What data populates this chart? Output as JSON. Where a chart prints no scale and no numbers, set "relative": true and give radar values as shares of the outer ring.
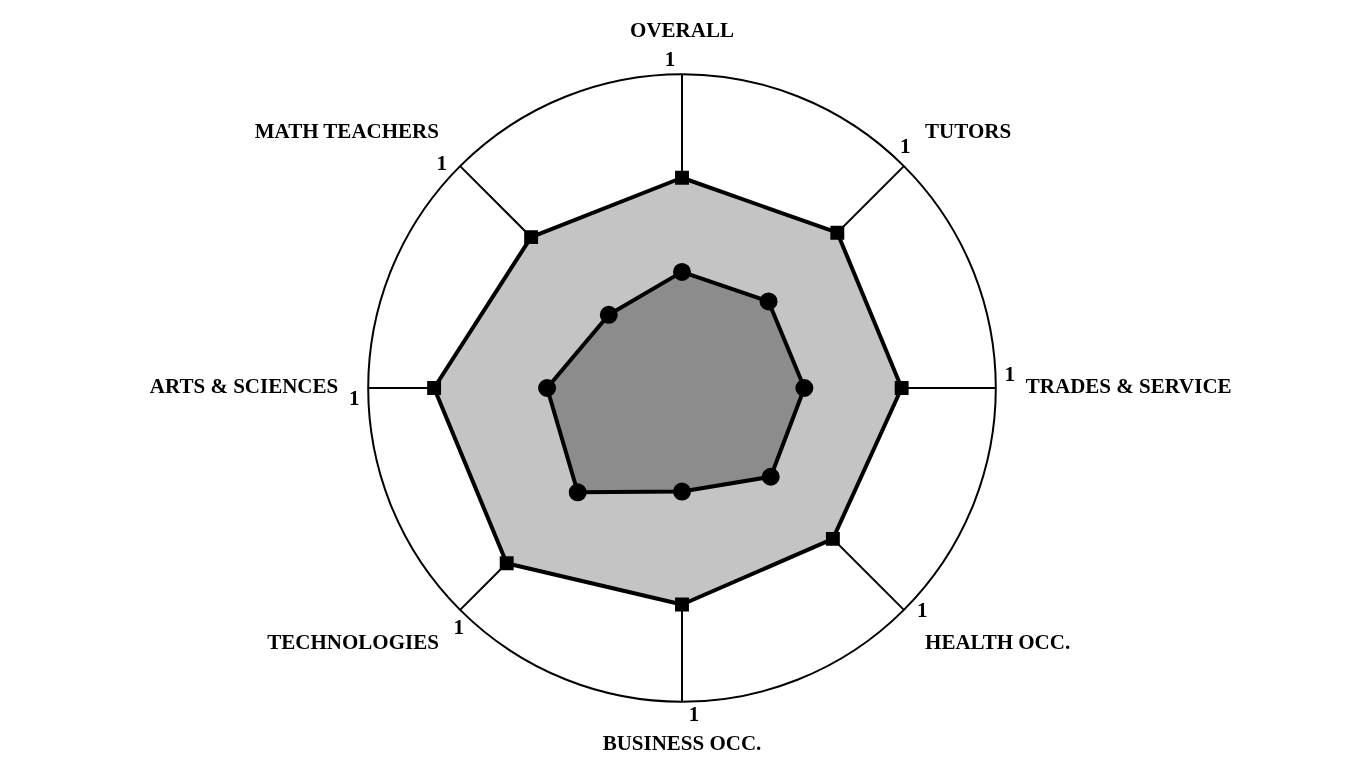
{
  "chart_data": {
    "type": "radar",
    "relative": true,
    "categories": [
      "OVERALL",
      "TUTORS",
      "TRADES & SERVICE",
      "HEALTH OCC.",
      "BUSINESS OCC.",
      "TECHNOLOGIES",
      "ARTS & SCIENCES",
      "MATH TEACHERS"
    ],
    "grid": true,
    "line_style": "solid",
    "annotations": [
      "1",
      "1",
      "1",
      "1",
      "1",
      "1",
      "1",
      "1"
    ],
    "series": [
      {
        "color": "#c4c4c4",
        "marker": "square",
        "values": [
          0.67,
          0.7,
          0.7,
          0.68,
          0.69,
          0.79,
          0.79,
          0.68
        ]
      },
      {
        "color": "#8c8c8c",
        "marker": "circle",
        "values": [
          0.37,
          0.39,
          0.39,
          0.4,
          0.33,
          0.47,
          0.43,
          0.33
        ]
      }
    ]
  }
}
